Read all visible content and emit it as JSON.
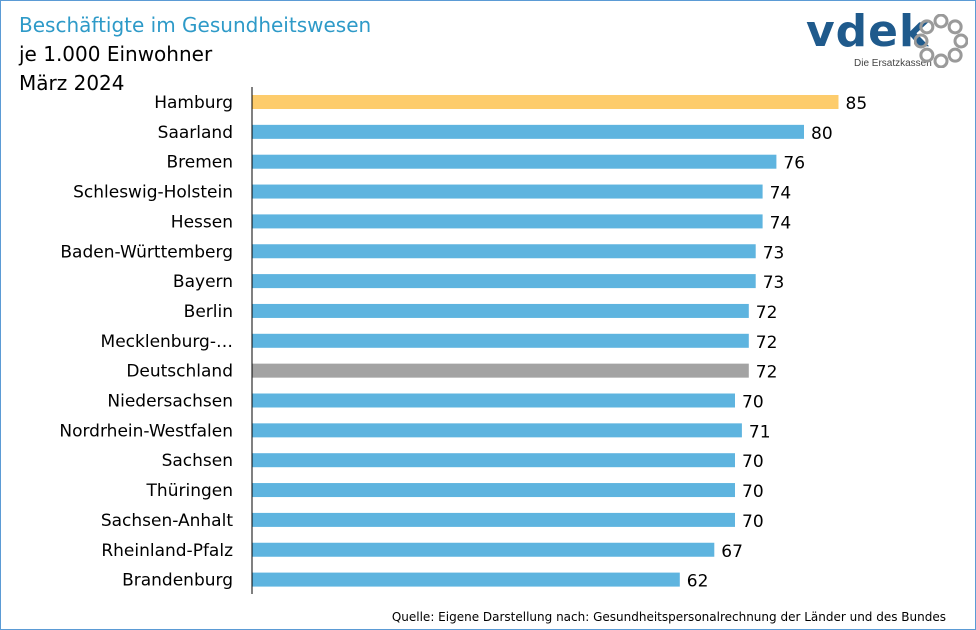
{
  "header": {
    "title": "Beschäftigte im Gesundheitswesen",
    "subtitle_line1": "je 1.000 Einwohner",
    "subtitle_line2": "März 2024"
  },
  "logo": {
    "wordmark": "vdek",
    "tagline": "Die Ersatzkassen",
    "icon": "dotted-ring-logo-icon"
  },
  "source": "Quelle: Eigene Darstellung nach: Gesundheitspersonalrechnung der Länder und des Bundes",
  "colors": {
    "default_bar": "#5eb4df",
    "highlight_bar": "#fdcc6c",
    "average_bar": "#a3a3a3",
    "title": "#2e9ac8",
    "frame": "#5b9bd5",
    "logo": "#1f5a8c"
  },
  "chart_data": {
    "type": "bar",
    "orientation": "horizontal",
    "title": "Beschäftigte im Gesundheitswesen",
    "xlabel": "",
    "ylabel": "",
    "xlim": [
      0,
      85
    ],
    "grid": false,
    "legend": "none",
    "categories": [
      "Hamburg",
      "Saarland",
      "Bremen",
      "Schleswig-Holstein",
      "Hessen",
      "Baden-Württemberg",
      "Bayern",
      "Berlin",
      "Mecklenburg-…",
      "Deutschland",
      "Niedersachsen",
      "Nordrhein-Westfalen",
      "Sachsen",
      "Thüringen",
      "Sachsen-Anhalt",
      "Rheinland-Pfalz",
      "Brandenburg"
    ],
    "values": [
      85,
      80,
      76,
      74,
      74,
      73,
      73,
      72,
      72,
      72,
      70,
      71,
      70,
      70,
      70,
      67,
      62
    ],
    "highlight": [
      "highlight",
      "default",
      "default",
      "default",
      "default",
      "default",
      "default",
      "default",
      "default",
      "average",
      "default",
      "default",
      "default",
      "default",
      "default",
      "default",
      "default"
    ]
  }
}
